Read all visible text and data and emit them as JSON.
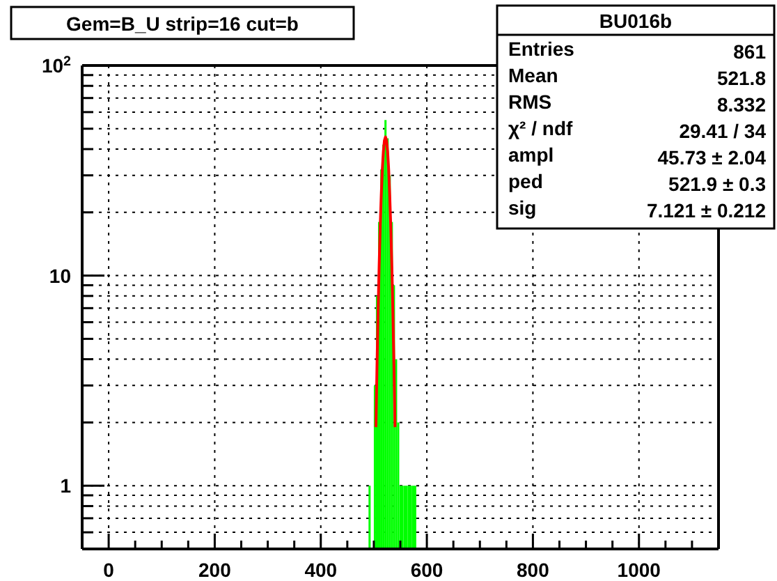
{
  "chart_data": {
    "type": "histogram",
    "title": "Gem=B_U strip=16 cut=b",
    "annotations": [
      "BU016b",
      "Entries",
      "861",
      "Mean",
      "521.8",
      "RMS",
      "8.332",
      "χ² / ndf",
      "29.41 / 34",
      "ampl",
      "45.73 ± 2.04",
      "ped",
      "521.9 ± 0.3",
      "sig",
      "7.121 ± 0.212"
    ],
    "series": [
      {
        "color": "#00ff00",
        "bins": [
          490,
          494,
          500,
          504,
          508,
          512,
          516,
          520,
          524,
          528,
          532,
          536,
          540,
          544,
          548,
          556,
          564,
          572,
          580
        ],
        "values": [
          1,
          null,
          3,
          8,
          18,
          32,
          42,
          55,
          45,
          30,
          18,
          9,
          4,
          2,
          1,
          1,
          1,
          1
        ]
      },
      {
        "type": "line",
        "color": "#ff0000",
        "x": [
          504,
          506,
          508,
          510,
          512,
          514,
          516,
          518,
          520,
          522,
          524,
          526,
          528,
          530,
          532,
          534,
          536,
          538,
          540
        ],
        "values": [
          1.9,
          3.7,
          6.6,
          11,
          17,
          24,
          32,
          39,
          44,
          45.7,
          44,
          39,
          32,
          24,
          17,
          11,
          6.6,
          3.7,
          1.9
        ]
      }
    ],
    "xlim": [
      -50,
      1150
    ],
    "xticks": [
      {
        "value": -50,
        "label": null
      },
      0,
      {
        "value": 50,
        "label": null
      },
      {
        "value": 100,
        "label": null
      },
      {
        "value": 150,
        "label": null
      },
      200,
      {
        "value": 250,
        "label": null
      },
      {
        "value": 300,
        "label": null
      },
      {
        "value": 350,
        "label": null
      },
      400,
      {
        "value": 450,
        "label": null
      },
      {
        "value": 500,
        "label": null
      },
      {
        "value": 550,
        "label": null
      },
      600,
      {
        "value": 650,
        "label": null
      },
      {
        "value": 700,
        "label": null
      },
      {
        "value": 750,
        "label": null
      },
      800,
      {
        "value": 850,
        "label": null
      },
      {
        "value": 900,
        "label": null
      },
      {
        "value": 950,
        "label": null
      },
      1000,
      {
        "value": 1050,
        "label": null
      },
      {
        "value": 1100,
        "label": null
      }
    ],
    "ylim": [
      0.5,
      100
    ],
    "yticks": [
      {
        "value": 0.6,
        "label": null
      },
      {
        "value": 0.7,
        "label": null
      },
      {
        "value": 0.8,
        "label": null
      },
      {
        "value": 0.9,
        "label": null
      },
      1,
      {
        "value": 2,
        "label": null
      },
      {
        "value": 3,
        "label": null
      },
      {
        "value": 4,
        "label": null
      },
      {
        "value": 5,
        "label": null
      },
      {
        "value": 6,
        "label": null
      },
      {
        "value": 7,
        "label": null
      },
      {
        "value": 8,
        "label": null
      },
      {
        "value": 9,
        "label": null
      },
      10,
      {
        "value": 20,
        "label": null
      },
      {
        "value": 30,
        "label": null
      },
      {
        "value": 40,
        "label": null
      },
      {
        "value": 50,
        "label": null
      },
      {
        "value": 60,
        "label": null
      },
      {
        "value": 70,
        "label": null
      },
      {
        "value": 80,
        "label": null
      },
      {
        "value": 90,
        "label": null
      },
      {
        "value": 100,
        "label": "10$^{2}$"
      }
    ],
    "log": true,
    "grid": true
  }
}
